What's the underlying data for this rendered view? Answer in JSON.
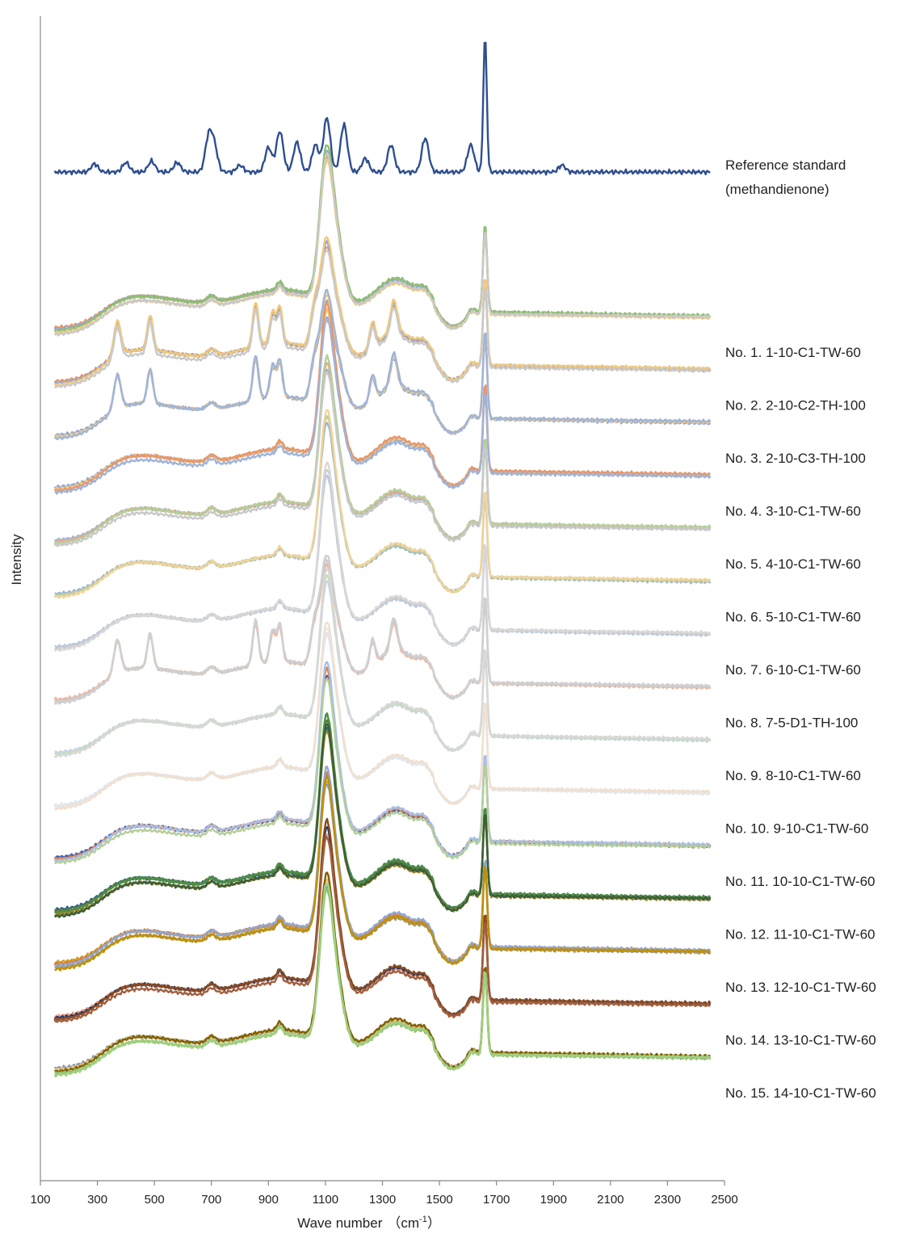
{
  "chart_data": {
    "type": "line",
    "xlabel": "Wave number",
    "xlabel_unit_base": "（cm",
    "xlabel_unit_sup": "-1",
    "xlabel_unit_end": "）",
    "ylabel": "Intensity",
    "xlim": [
      100,
      2500
    ],
    "x_ticks": [
      100,
      300,
      500,
      700,
      900,
      1100,
      1300,
      1500,
      1700,
      1900,
      2100,
      2300,
      2500
    ],
    "x_range_data": [
      150,
      2450
    ],
    "grid": false,
    "legend": "labels at right end of each trace",
    "reference": {
      "label_line1": "Reference standard",
      "label_line2": "(methandienone)",
      "color": "#2f4f8f",
      "peaks": [
        [
          290,
          0.06
        ],
        [
          400,
          0.07
        ],
        [
          490,
          0.08
        ],
        [
          580,
          0.07
        ],
        [
          690,
          0.25
        ],
        [
          710,
          0.18
        ],
        [
          800,
          0.05
        ],
        [
          900,
          0.18
        ],
        [
          940,
          0.3
        ],
        [
          1000,
          0.22
        ],
        [
          1065,
          0.2
        ],
        [
          1105,
          0.4
        ],
        [
          1165,
          0.35
        ],
        [
          1240,
          0.1
        ],
        [
          1330,
          0.2
        ],
        [
          1450,
          0.25
        ],
        [
          1610,
          0.2
        ],
        [
          1660,
          1.0
        ],
        [
          1930,
          0.05
        ]
      ]
    },
    "series": [
      {
        "name": "No. 1. 1-10-C1-TW-60",
        "profile": "A",
        "colors": [
          "#e8956a",
          "#8fa8d8",
          "#8fbf6f",
          "#f2c97a",
          "#c9c9c9"
        ]
      },
      {
        "name": "No. 2. 2-10-C2-TH-100",
        "profile": "B",
        "colors": [
          "#e8956a",
          "#8fa8d8",
          "#f2c97a",
          "#c9c9c9"
        ]
      },
      {
        "name": "No. 3. 2-10-C3-TH-100",
        "profile": "B",
        "colors": [
          "#8fa8d8",
          "#f2c97a",
          "#a0b4d8"
        ]
      },
      {
        "name": "No. 4. 3-10-C1-TW-60",
        "profile": "A",
        "colors": [
          "#8fa8d8",
          "#f2c97a",
          "#e8956a",
          "#a0b4d8"
        ]
      },
      {
        "name": "No. 5. 4-10-C1-TW-60",
        "profile": "A",
        "colors": [
          "#a0b4d8",
          "#e8a585",
          "#b5cf9a",
          "#c9c9c9"
        ]
      },
      {
        "name": "No. 6. 5-10-C1-TW-60",
        "profile": "A",
        "colors": [
          "#a0b4d8",
          "#b5cf9a",
          "#f2d39a"
        ]
      },
      {
        "name": "No. 7. 6-10-C1-TW-60",
        "profile": "A",
        "colors": [
          "#b8c8e4",
          "#c9c9c9",
          "#d8d8d8"
        ]
      },
      {
        "name": "No. 8. 7-5-D1-TH-100",
        "profile": "B",
        "colors": [
          "#f0b6a0",
          "#c9c9c9",
          "#d0d0d0"
        ]
      },
      {
        "name": "No. 9. 8-10-C1-TW-60",
        "profile": "A",
        "colors": [
          "#c8d4ea",
          "#c6dcb4",
          "#d8d8d8"
        ]
      },
      {
        "name": "No. 10. 9-10-C1-TW-60",
        "profile": "A",
        "colors": [
          "#dfe4f0",
          "#e6e6e6",
          "#f0e0d0"
        ]
      },
      {
        "name": "No. 11. 10-10-C1-TW-60",
        "profile": "C",
        "colors": [
          "#3c64b0",
          "#e8804a",
          "#a8c0e8",
          "#b5cf9a"
        ]
      },
      {
        "name": "No. 12. 11-10-C1-TW-60",
        "profile": "C",
        "colors": [
          "#2f6090",
          "#5a7a30",
          "#4a8f4a",
          "#a08020",
          "#3a5f3a"
        ]
      },
      {
        "name": "No. 13. 12-10-C1-TW-60",
        "profile": "C",
        "colors": [
          "#d4a020",
          "#e07a30",
          "#8fa8d8",
          "#9a9a9a",
          "#c09000"
        ]
      },
      {
        "name": "No. 14. 13-10-C1-TW-60",
        "profile": "C",
        "colors": [
          "#f0a080",
          "#203a70",
          "#8a4a20",
          "#a06040"
        ]
      },
      {
        "name": "No. 15. 14-10-C1-TW-60",
        "profile": "C",
        "colors": [
          "#8a9aaa",
          "#f0c080",
          "#7f6000",
          "#8fc070",
          "#a0d080"
        ]
      }
    ]
  }
}
